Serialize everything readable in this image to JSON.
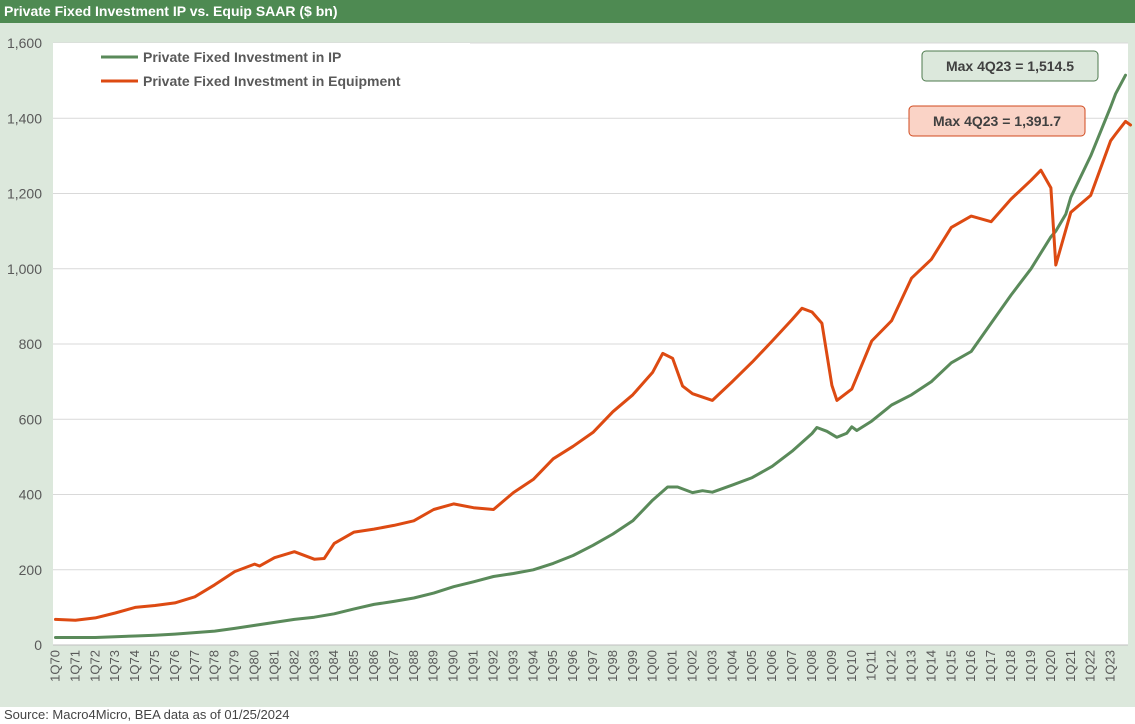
{
  "header": {
    "title": "Private Fixed Investment IP vs. Equip SAAR ($ bn)"
  },
  "footer": {
    "source": "Source: Macro4Micro, BEA      data as of 01/25/2024"
  },
  "colors": {
    "title_bar": "#4e8a52",
    "chart_bg": "#dce8dc",
    "ip_line": "#5a8a5a",
    "equipment_line": "#dd4a12",
    "ip_box_fill": "#dce8dc",
    "equipment_box_fill": "#fad3c6"
  },
  "chart_data": {
    "type": "line",
    "title": "Private Fixed Investment IP vs. Equip SAAR ($ bn)",
    "xlabel": "",
    "ylabel": "",
    "ylim": [
      0,
      1600
    ],
    "yticks": [
      "0",
      "200",
      "400",
      "600",
      "800",
      "1,000",
      "1,200",
      "1,400",
      "1,600"
    ],
    "x_tick_labels": [
      "1Q70",
      "1Q71",
      "1Q72",
      "1Q73",
      "1Q74",
      "1Q75",
      "1Q76",
      "1Q77",
      "1Q78",
      "1Q79",
      "1Q80",
      "1Q81",
      "1Q82",
      "1Q83",
      "1Q84",
      "1Q85",
      "1Q86",
      "1Q87",
      "1Q88",
      "1Q89",
      "1Q90",
      "1Q91",
      "1Q92",
      "1Q93",
      "1Q94",
      "1Q95",
      "1Q96",
      "1Q97",
      "1Q98",
      "1Q99",
      "1Q00",
      "1Q01",
      "1Q02",
      "1Q03",
      "1Q04",
      "1Q05",
      "1Q06",
      "1Q07",
      "1Q08",
      "1Q09",
      "1Q10",
      "1Q11",
      "1Q12",
      "1Q13",
      "1Q14",
      "1Q15",
      "1Q16",
      "1Q17",
      "1Q18",
      "1Q19",
      "1Q20",
      "1Q21",
      "1Q22",
      "1Q23"
    ],
    "x_range": [
      "1Q70",
      "4Q23"
    ],
    "grid": "horizontal",
    "legend": "top-left",
    "series": [
      {
        "name": "Private Fixed Investment in IP",
        "color": "#5a8a5a",
        "points": [
          [
            "1Q70",
            20
          ],
          [
            "1Q71",
            20
          ],
          [
            "1Q72",
            20
          ],
          [
            "1Q73",
            22
          ],
          [
            "1Q74",
            24
          ],
          [
            "1Q75",
            26
          ],
          [
            "1Q76",
            29
          ],
          [
            "1Q77",
            33
          ],
          [
            "1Q78",
            37
          ],
          [
            "1Q79",
            44
          ],
          [
            "1Q80",
            52
          ],
          [
            "1Q81",
            60
          ],
          [
            "1Q82",
            68
          ],
          [
            "1Q83",
            74
          ],
          [
            "1Q84",
            83
          ],
          [
            "1Q85",
            96
          ],
          [
            "1Q86",
            108
          ],
          [
            "1Q87",
            116
          ],
          [
            "1Q88",
            125
          ],
          [
            "1Q89",
            138
          ],
          [
            "1Q90",
            155
          ],
          [
            "1Q91",
            168
          ],
          [
            "1Q92",
            182
          ],
          [
            "1Q93",
            190
          ],
          [
            "1Q94",
            200
          ],
          [
            "1Q95",
            217
          ],
          [
            "1Q96",
            238
          ],
          [
            "1Q97",
            265
          ],
          [
            "1Q98",
            295
          ],
          [
            "1Q99",
            330
          ],
          [
            "1Q00",
            385
          ],
          [
            "4Q00",
            420
          ],
          [
            "2Q01",
            420
          ],
          [
            "1Q02",
            405
          ],
          [
            "3Q02",
            410
          ],
          [
            "1Q03",
            406
          ],
          [
            "1Q04",
            425
          ],
          [
            "1Q05",
            445
          ],
          [
            "1Q06",
            475
          ],
          [
            "1Q07",
            515
          ],
          [
            "1Q08",
            562
          ],
          [
            "2Q08",
            578
          ],
          [
            "4Q08",
            568
          ],
          [
            "2Q09",
            552
          ],
          [
            "4Q09",
            563
          ],
          [
            "1Q10",
            580
          ],
          [
            "2Q10",
            570
          ],
          [
            "1Q11",
            595
          ],
          [
            "1Q12",
            638
          ],
          [
            "1Q13",
            665
          ],
          [
            "1Q14",
            700
          ],
          [
            "1Q15",
            750
          ],
          [
            "1Q16",
            780
          ],
          [
            "1Q17",
            855
          ],
          [
            "1Q18",
            930
          ],
          [
            "1Q19",
            1000
          ],
          [
            "1Q20",
            1085
          ],
          [
            "2Q20",
            1100
          ],
          [
            "4Q20",
            1145
          ],
          [
            "1Q21",
            1190
          ],
          [
            "1Q22",
            1300
          ],
          [
            "1Q23",
            1430
          ],
          [
            "2Q23",
            1465
          ],
          [
            "4Q23",
            1514.5
          ]
        ]
      },
      {
        "name": "Private Fixed Investment in Equipment",
        "color": "#dd4a12",
        "points": [
          [
            "1Q70",
            68
          ],
          [
            "1Q71",
            66
          ],
          [
            "1Q72",
            72
          ],
          [
            "1Q73",
            85
          ],
          [
            "1Q74",
            100
          ],
          [
            "1Q75",
            105
          ],
          [
            "1Q76",
            112
          ],
          [
            "1Q77",
            128
          ],
          [
            "1Q78",
            160
          ],
          [
            "1Q79",
            195
          ],
          [
            "1Q80",
            215
          ],
          [
            "2Q80",
            210
          ],
          [
            "1Q81",
            232
          ],
          [
            "1Q82",
            248
          ],
          [
            "1Q83",
            228
          ],
          [
            "3Q83",
            230
          ],
          [
            "1Q84",
            270
          ],
          [
            "1Q85",
            300
          ],
          [
            "1Q86",
            308
          ],
          [
            "1Q87",
            318
          ],
          [
            "1Q88",
            330
          ],
          [
            "1Q89",
            360
          ],
          [
            "1Q90",
            375
          ],
          [
            "1Q91",
            365
          ],
          [
            "1Q92",
            360
          ],
          [
            "1Q93",
            405
          ],
          [
            "1Q94",
            440
          ],
          [
            "1Q95",
            495
          ],
          [
            "1Q96",
            528
          ],
          [
            "1Q97",
            565
          ],
          [
            "1Q98",
            620
          ],
          [
            "1Q99",
            665
          ],
          [
            "1Q00",
            725
          ],
          [
            "3Q00",
            775
          ],
          [
            "1Q01",
            762
          ],
          [
            "3Q01",
            688
          ],
          [
            "1Q02",
            668
          ],
          [
            "1Q03",
            650
          ],
          [
            "1Q04",
            700
          ],
          [
            "1Q05",
            752
          ],
          [
            "1Q06",
            808
          ],
          [
            "1Q07",
            865
          ],
          [
            "3Q07",
            895
          ],
          [
            "1Q08",
            885
          ],
          [
            "3Q08",
            855
          ],
          [
            "1Q09",
            690
          ],
          [
            "2Q09",
            650
          ],
          [
            "1Q10",
            680
          ],
          [
            "1Q11",
            808
          ],
          [
            "1Q12",
            862
          ],
          [
            "1Q13",
            975
          ],
          [
            "1Q14",
            1025
          ],
          [
            "1Q15",
            1110
          ],
          [
            "1Q16",
            1140
          ],
          [
            "1Q17",
            1125
          ],
          [
            "1Q18",
            1185
          ],
          [
            "1Q19",
            1235
          ],
          [
            "3Q19",
            1262
          ],
          [
            "1Q20",
            1215
          ],
          [
            "2Q20",
            1010
          ],
          [
            "1Q21",
            1150
          ],
          [
            "1Q22",
            1195
          ],
          [
            "1Q23",
            1340
          ],
          [
            "2Q23",
            1358
          ],
          [
            "4Q23",
            1391.7
          ],
          [
            "1Q24",
            1382
          ]
        ]
      }
    ],
    "annotations": [
      {
        "text": "Max 4Q23 = 1,514.5",
        "series": "Private Fixed Investment in IP"
      },
      {
        "text": "Max 4Q23 = 1,391.7",
        "series": "Private Fixed Investment in Equipment"
      }
    ]
  }
}
